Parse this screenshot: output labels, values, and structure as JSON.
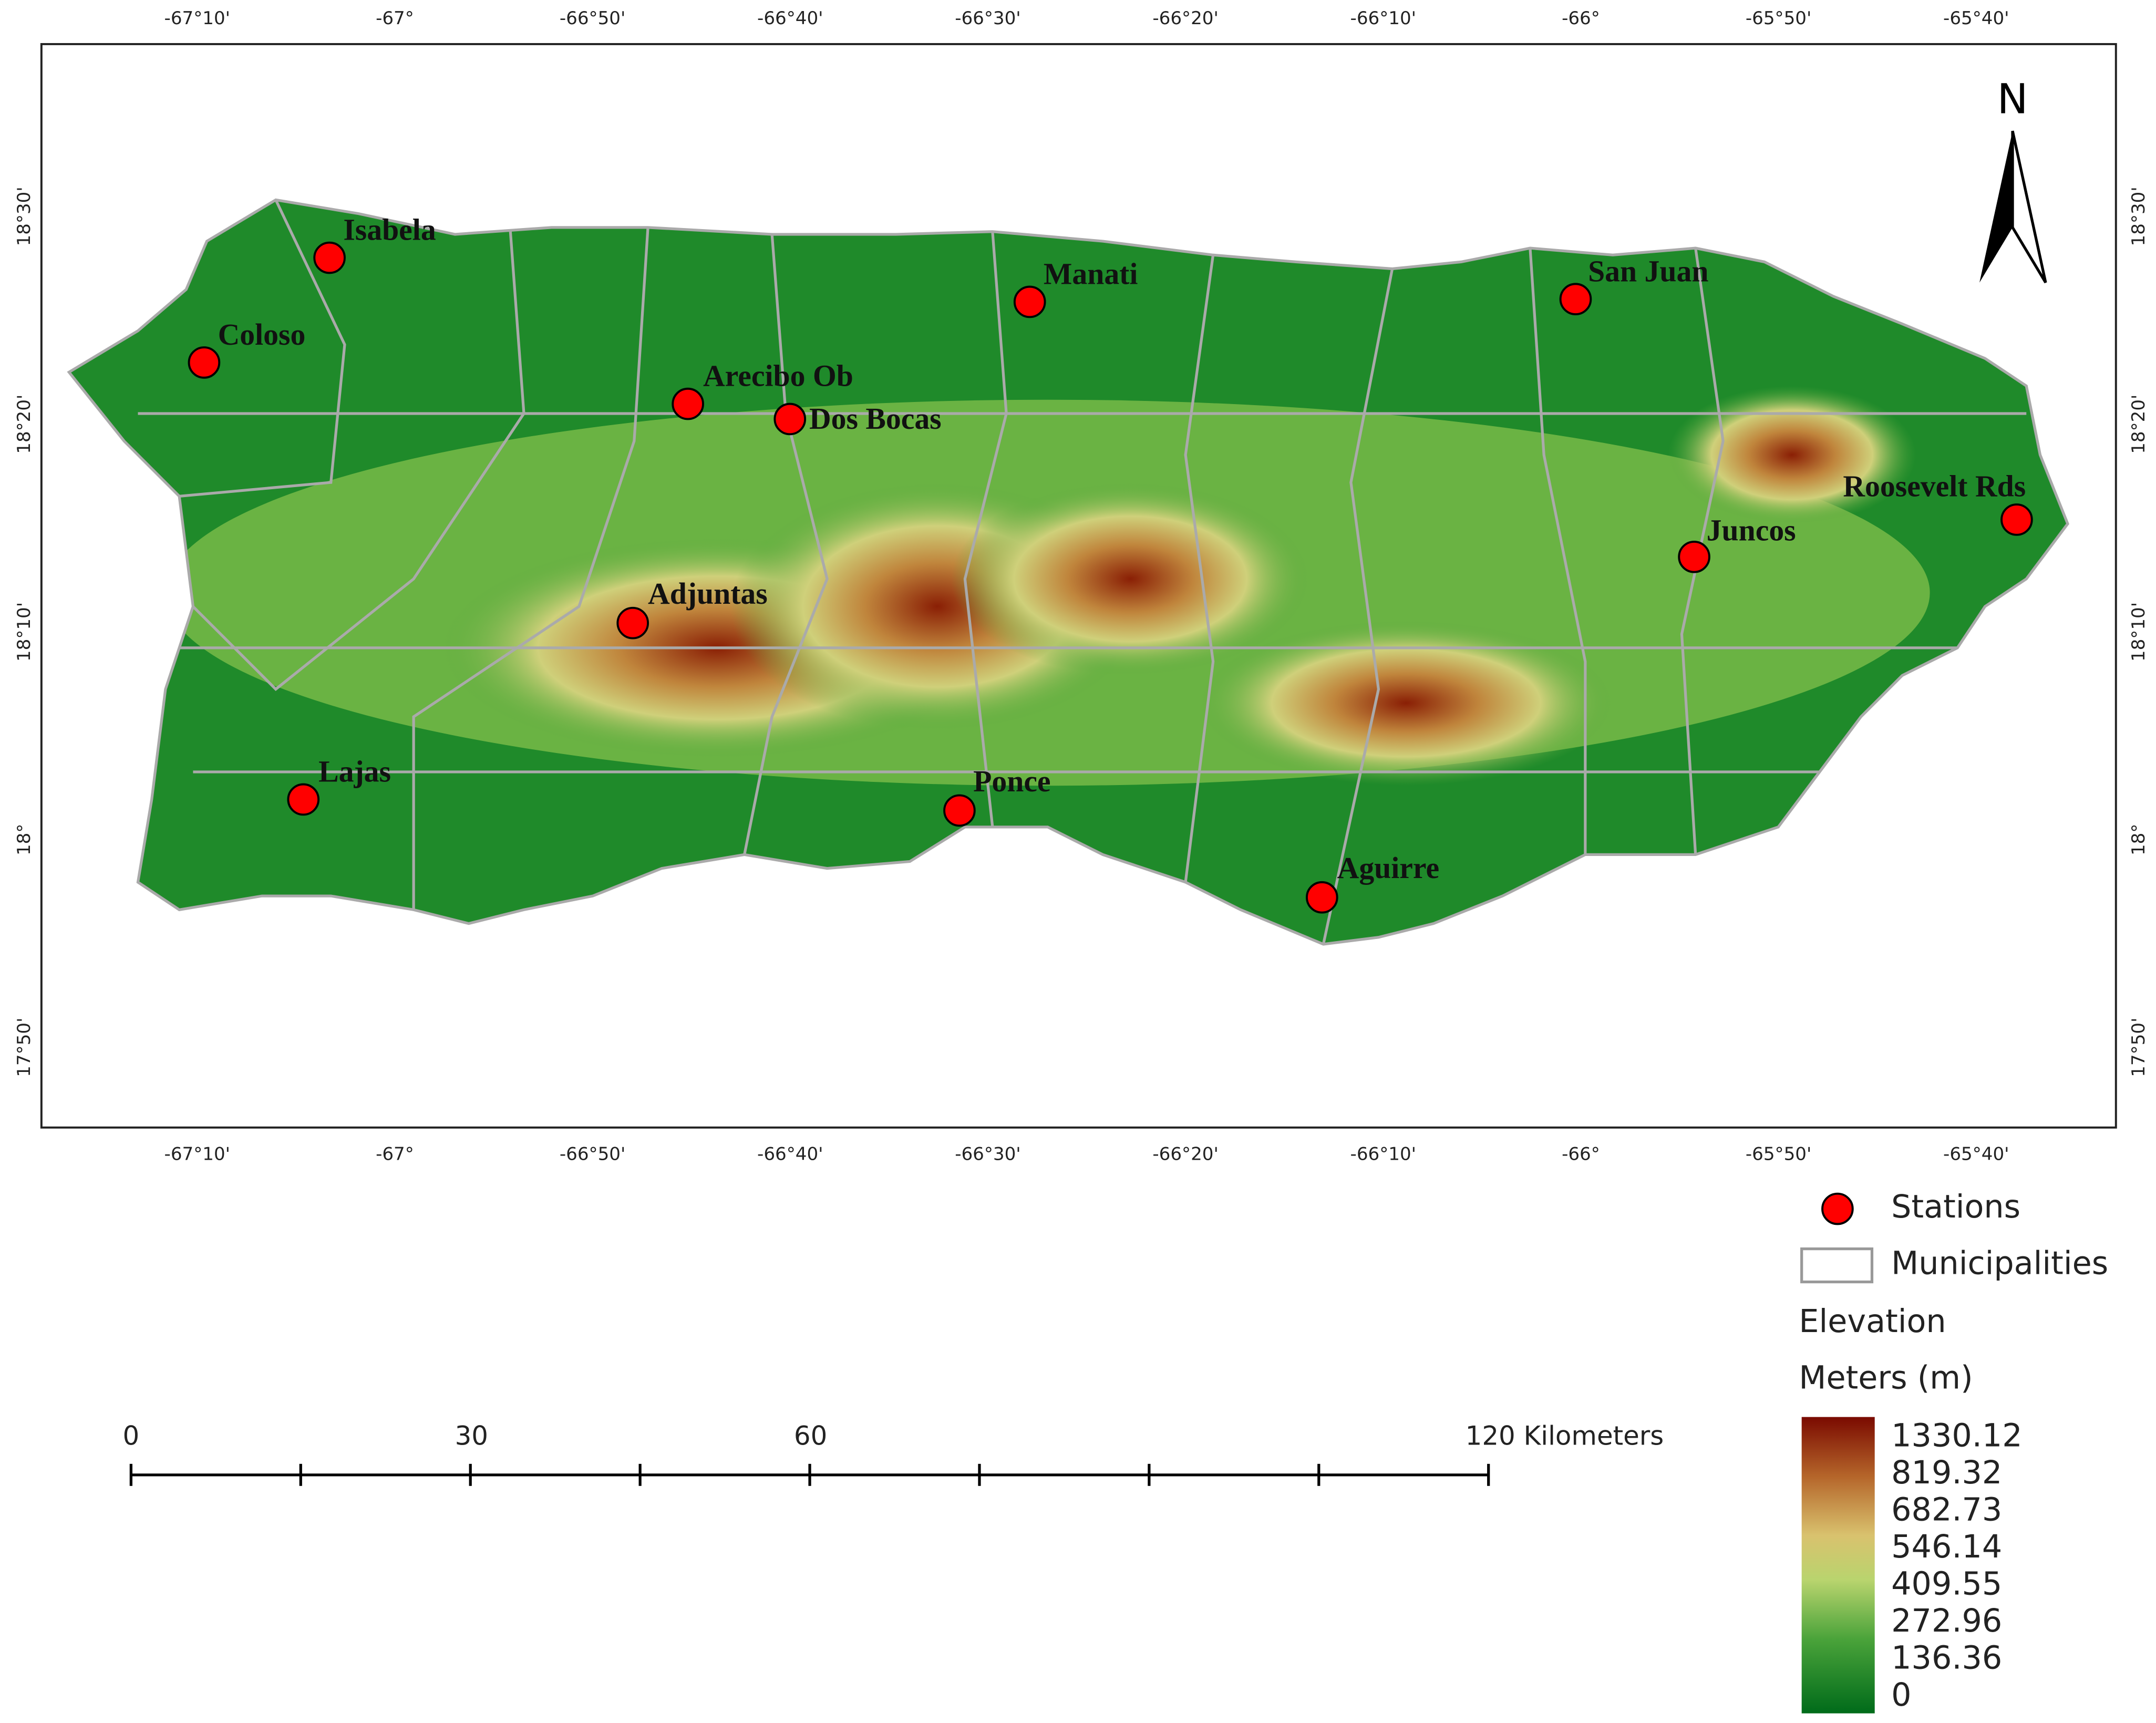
{
  "map": {
    "longitude_ticks": [
      "-67°10'",
      "-67°",
      "-66°50'",
      "-66°40'",
      "-66°30'",
      "-66°20'",
      "-66°10'",
      "-66°",
      "-65°50'",
      "-65°40'"
    ],
    "latitude_ticks": [
      "18°30'",
      "18°20'",
      "18°10'",
      "18°",
      "17°50'"
    ],
    "north_label": "N",
    "stations": [
      "Isabela",
      "Coloso",
      "Arecibo Ob",
      "Dos Bocas",
      "Manati",
      "San Juan",
      "Roosevelt Rds",
      "Juncos",
      "Adjuntas",
      "Lajas",
      "Ponce",
      "Aguirre"
    ],
    "scale_bar": [
      "0",
      "30",
      "60",
      "120 Kilometers"
    ]
  },
  "legend": {
    "stations": "Stations",
    "municipalities": "Municipalities",
    "elevation_title": "Elevation",
    "elevation_unit": "Meters (m)",
    "elevation_labels": [
      1330.12,
      819.32,
      682.73,
      546.14,
      409.55,
      272.96,
      136.36,
      0
    ]
  }
}
